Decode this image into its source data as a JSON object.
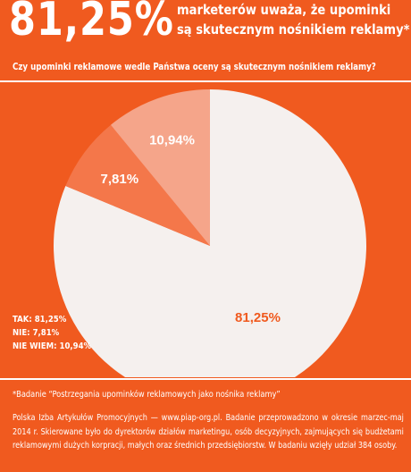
{
  "header": {
    "big_stat": "81,25%",
    "headline_line1": "marketerów uważa, że upominki",
    "headline_line2": "są skutecznym nośnikiem reklamy*"
  },
  "question": "Czy upominki reklamowe wedle Państwa oceny są skutecznym nośnikiem reklamy?",
  "chart_data": {
    "type": "pie",
    "slices": [
      {
        "label": "TAK",
        "value": 81.25,
        "display": "81,25%",
        "color": "#f5f0ee",
        "text_color": "#f05a1f"
      },
      {
        "label": "NIE",
        "value": 7.81,
        "display": "7,81%",
        "color": "#f4774a",
        "text_color": "#ffffff"
      },
      {
        "label": "NIE WIEM",
        "value": 10.94,
        "display": "10,94%",
        "color": "#f5a58a",
        "text_color": "#ffffff"
      }
    ]
  },
  "legend": {
    "items": [
      "TAK: 81,25%",
      "NIE: 7,81%",
      "NIE WIEM: 10,94%"
    ]
  },
  "footer": {
    "footnote": "*Badanie “Postrzegania upominków reklamowych jako nośnika reklamy”",
    "source": "Polska Izba Artykułów Promocyjnych — www.piap-org.pl. Badanie przeprowadzono w okresie marzec-maj 2014 r. Skierowane było do dyrektorów działów marketingu, osób decyzyjnych, zajmujących się budżetami reklamowymi dużych korpracji, małych oraz średnich przedsiębiorstw. W badaniu wzięły udział 384 osoby."
  },
  "colors": {
    "background": "#f05a1f",
    "text": "#ffffff"
  }
}
